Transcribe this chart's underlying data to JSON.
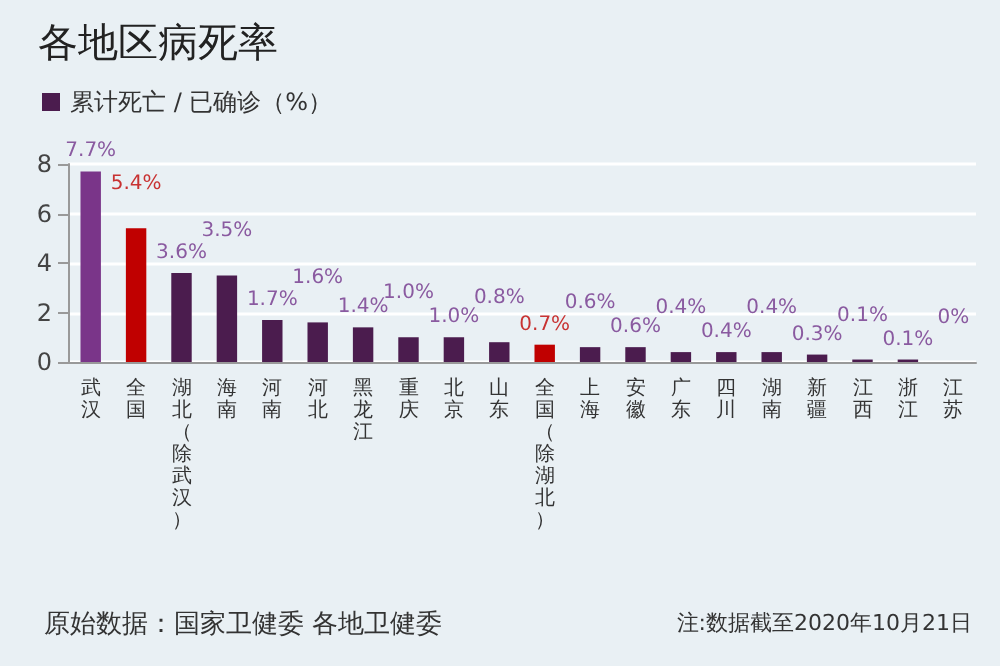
{
  "chart_data": {
    "type": "bar",
    "title": "各地区病死率",
    "categories": [
      "武汉",
      "全国",
      "湖北（除武汉）",
      "海南",
      "河南",
      "河北",
      "黑龙江",
      "重庆",
      "北京",
      "山东",
      "全国（除湖北）",
      "上海",
      "安徽",
      "广东",
      "四川",
      "湖南",
      "新疆",
      "江西",
      "浙江",
      "江苏"
    ],
    "series": [
      {
        "name": "累计死亡 / 已确诊（%）",
        "color": "#4b1c4e",
        "colors": [
          "#7a3589",
          "#c00000",
          "#4b1c4e",
          "#4b1c4e",
          "#4b1c4e",
          "#4b1c4e",
          "#4b1c4e",
          "#4b1c4e",
          "#4b1c4e",
          "#4b1c4e",
          "#c00000",
          "#4b1c4e",
          "#4b1c4e",
          "#4b1c4e",
          "#4b1c4e",
          "#4b1c4e",
          "#4b1c4e",
          "#4b1c4e",
          "#4b1c4e",
          "#4b1c4e"
        ],
        "values": [
          7.7,
          5.4,
          3.6,
          3.5,
          1.7,
          1.6,
          1.4,
          1.0,
          1.0,
          0.8,
          0.7,
          0.6,
          0.6,
          0.4,
          0.4,
          0.4,
          0.3,
          0.1,
          0.1,
          0
        ],
        "value_labels": [
          "7.7%",
          "5.4%",
          "3.6%",
          "3.5%",
          "1.7%",
          "1.6%",
          "1.4%",
          "1.0%",
          "1.0%",
          "0.8%",
          "0.7%",
          "0.6%",
          "0.6%",
          "0.4%",
          "0.4%",
          "0.4%",
          "0.3%",
          "0.1%",
          "0.1%",
          "0%"
        ]
      }
    ],
    "ylim": [
      0,
      8
    ],
    "yticks": [
      0,
      2,
      4,
      6,
      8
    ],
    "grid": "y",
    "legend": "top left",
    "annotations": [
      "原始数据：国家卫健委 各地卫健委",
      "注:数据截至2020年10月21日"
    ]
  }
}
